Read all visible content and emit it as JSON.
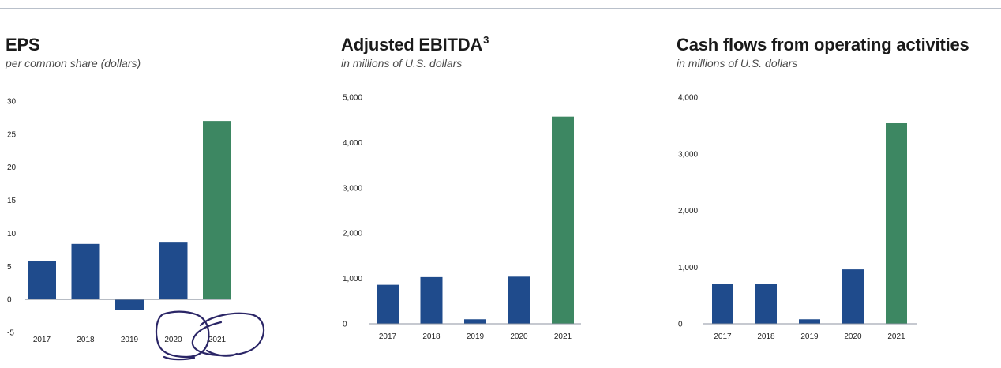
{
  "colors": {
    "historical": "#1f4b8c",
    "highlight": "#3d8762",
    "axis": "#8c93a0",
    "annotation": "#2a2566"
  },
  "chart_data": [
    {
      "type": "bar",
      "title": "EPS",
      "title_sup": "",
      "subtitle": "per common share (dollars)",
      "xlabel": "",
      "ylabel": "",
      "categories": [
        "2017",
        "2018",
        "2019",
        "2020",
        "2021"
      ],
      "values": [
        5.8,
        8.4,
        -1.6,
        8.6,
        27.0
      ],
      "highlight_index": 4,
      "ylim": [
        -5,
        30
      ],
      "yticks": [
        -5,
        0,
        5,
        10,
        15,
        20,
        25,
        30
      ],
      "ytick_labels": [
        "-5",
        "0",
        "5",
        "10",
        "15",
        "20",
        "25",
        "30"
      ],
      "grid": false,
      "annotations": [
        "pen circles around 2020",
        "pen circles around 2021"
      ]
    },
    {
      "type": "bar",
      "title": "Adjusted EBITDA",
      "title_sup": "3",
      "subtitle": "in millions of U.S. dollars",
      "xlabel": "",
      "ylabel": "",
      "categories": [
        "2017",
        "2018",
        "2019",
        "2020",
        "2021"
      ],
      "values": [
        860,
        1030,
        100,
        1040,
        4570
      ],
      "highlight_index": 4,
      "ylim": [
        0,
        5000
      ],
      "yticks": [
        0,
        1000,
        2000,
        3000,
        4000,
        5000
      ],
      "ytick_labels": [
        "0",
        "1,000",
        "2,000",
        "3,000",
        "4,000",
        "5,000"
      ],
      "grid": false
    },
    {
      "type": "bar",
      "title": "Cash flows from operating activities",
      "title_sup": "",
      "subtitle": "in millions of U.S. dollars",
      "xlabel": "",
      "ylabel": "",
      "categories": [
        "2017",
        "2018",
        "2019",
        "2020",
        "2021"
      ],
      "values": [
        700,
        700,
        80,
        960,
        3540
      ],
      "highlight_index": 4,
      "ylim": [
        0,
        4000
      ],
      "yticks": [
        0,
        1000,
        2000,
        3000,
        4000
      ],
      "ytick_labels": [
        "0",
        "1,000",
        "2,000",
        "3,000",
        "4,000"
      ],
      "grid": false
    }
  ]
}
